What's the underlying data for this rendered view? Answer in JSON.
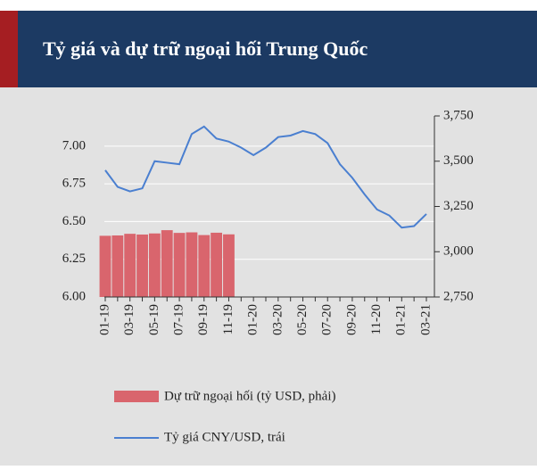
{
  "chart_data": {
    "type": "bar-line",
    "title": "Tỷ giá và dự trữ ngoại hối Trung Quốc",
    "categories": [
      "01-19",
      null,
      "03-19",
      null,
      "05-19",
      null,
      "07-19",
      null,
      "09-19",
      null,
      "11-19",
      null,
      "01-20",
      null,
      "03-20",
      null,
      "05-20",
      null,
      "07-20",
      null,
      "09-20",
      null,
      "11-20",
      null,
      "01-21",
      null,
      "03-21"
    ],
    "series": [
      {
        "name": "Dự trữ ngoại hối (tỷ USD, phải)",
        "type": "bar",
        "axis": "y2",
        "color": "#d9656d",
        "values": [
          3088,
          3090,
          3099,
          3095,
          3101,
          3119,
          3104,
          3107,
          3092,
          3105,
          3096,
          null,
          null,
          null,
          null,
          null,
          null,
          null,
          null,
          null,
          null,
          null,
          null,
          null,
          null,
          null,
          null
        ]
      },
      {
        "name": "Tỷ giá CNY/USD, trái",
        "type": "line",
        "axis": "y",
        "color": "#4a7fd0",
        "values": [
          6.84,
          6.73,
          6.7,
          6.72,
          6.9,
          6.89,
          6.88,
          7.08,
          7.13,
          7.05,
          7.03,
          6.99,
          6.94,
          6.99,
          7.06,
          7.07,
          7.1,
          7.08,
          7.02,
          6.88,
          6.79,
          6.68,
          6.58,
          6.54,
          6.46,
          6.47,
          6.55
        ]
      }
    ],
    "ylim": [
      6.0,
      7.2
    ],
    "yticks": [
      {
        "value": 6,
        "label": "6.00"
      },
      {
        "value": 6.25,
        "label": "6.25"
      },
      {
        "value": 6.5,
        "label": "6.50"
      },
      {
        "value": 6.75,
        "label": "6.75"
      },
      {
        "value": 7,
        "label": "7.00"
      }
    ],
    "y2lim": [
      2750,
      3750
    ],
    "y2ticks": [
      {
        "value": 2750,
        "label": "2,750"
      },
      {
        "value": 3000,
        "label": "3,000"
      },
      {
        "value": 3250,
        "label": "3,250"
      },
      {
        "value": 3500,
        "label": "3,500"
      },
      {
        "value": 3750,
        "label": "3,750"
      }
    ],
    "grid": true
  }
}
